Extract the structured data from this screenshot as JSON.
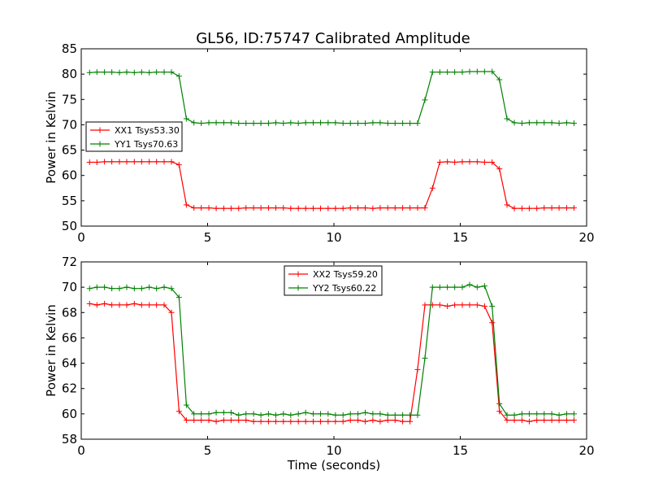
{
  "figure": {
    "title": "GL56, ID:75747 Calibrated Amplitude"
  },
  "colors": {
    "xx": "#ff0000",
    "yy": "#008000"
  },
  "chart_data": [
    {
      "type": "line",
      "title": "GL56, ID:75747 Calibrated Amplitude",
      "xlabel": "",
      "ylabel": "Power in Kelvin",
      "xlim": [
        0,
        20
      ],
      "ylim": [
        50,
        85
      ],
      "xticks": [
        0,
        5,
        10,
        15,
        20
      ],
      "yticks": [
        50,
        55,
        60,
        65,
        70,
        75,
        80,
        85
      ],
      "legend_position": "center-left",
      "x": [
        0.33,
        0.62,
        0.92,
        1.21,
        1.51,
        1.8,
        2.1,
        2.39,
        2.69,
        2.98,
        3.28,
        3.57,
        3.87,
        4.16,
        4.46,
        4.75,
        5.05,
        5.34,
        5.64,
        5.93,
        6.23,
        6.52,
        6.82,
        7.11,
        7.41,
        7.7,
        8.0,
        8.29,
        8.59,
        8.88,
        9.18,
        9.47,
        9.77,
        10.06,
        10.36,
        10.65,
        10.95,
        11.24,
        11.54,
        11.83,
        12.13,
        12.42,
        12.72,
        13.01,
        13.31,
        13.6,
        13.9,
        14.19,
        14.49,
        14.78,
        15.08,
        15.37,
        15.67,
        15.96,
        16.26,
        16.55,
        16.85,
        17.14,
        17.44,
        17.73,
        18.03,
        18.32,
        18.62,
        18.91,
        19.21,
        19.5
      ],
      "series": [
        {
          "name": "XX1 Tsys53.30",
          "color": "#ff0000",
          "values": [
            62.6,
            62.6,
            62.7,
            62.7,
            62.7,
            62.7,
            62.7,
            62.7,
            62.7,
            62.7,
            62.7,
            62.7,
            62.1,
            54.2,
            53.6,
            53.6,
            53.6,
            53.5,
            53.5,
            53.5,
            53.5,
            53.6,
            53.6,
            53.6,
            53.6,
            53.6,
            53.6,
            53.5,
            53.5,
            53.5,
            53.5,
            53.5,
            53.5,
            53.5,
            53.5,
            53.6,
            53.6,
            53.6,
            53.5,
            53.6,
            53.6,
            53.6,
            53.6,
            53.6,
            53.6,
            53.6,
            57.5,
            62.6,
            62.7,
            62.6,
            62.7,
            62.7,
            62.7,
            62.6,
            62.6,
            61.3,
            54.2,
            53.5,
            53.5,
            53.5,
            53.5,
            53.6,
            53.6,
            53.6,
            53.6,
            53.6
          ]
        },
        {
          "name": "YY1 Tsys70.63",
          "color": "#008000",
          "values": [
            80.3,
            80.4,
            80.4,
            80.4,
            80.3,
            80.4,
            80.3,
            80.4,
            80.3,
            80.4,
            80.4,
            80.4,
            79.6,
            71.2,
            70.4,
            70.3,
            70.4,
            70.4,
            70.4,
            70.4,
            70.3,
            70.3,
            70.3,
            70.3,
            70.3,
            70.4,
            70.3,
            70.4,
            70.3,
            70.4,
            70.4,
            70.4,
            70.4,
            70.4,
            70.3,
            70.3,
            70.3,
            70.3,
            70.4,
            70.4,
            70.3,
            70.3,
            70.3,
            70.3,
            70.3,
            74.9,
            80.4,
            80.4,
            80.4,
            80.4,
            80.4,
            80.5,
            80.5,
            80.5,
            80.5,
            78.9,
            71.2,
            70.4,
            70.3,
            70.4,
            70.4,
            70.4,
            70.4,
            70.3,
            70.4,
            70.3
          ]
        }
      ]
    },
    {
      "type": "line",
      "title": "",
      "xlabel": "Time (seconds)",
      "ylabel": "Power in Kelvin",
      "xlim": [
        0,
        20
      ],
      "ylim": [
        58,
        72
      ],
      "xticks": [
        0,
        5,
        10,
        15,
        20
      ],
      "yticks": [
        58,
        60,
        62,
        64,
        66,
        68,
        70,
        72
      ],
      "legend_position": "upper-center",
      "x": [
        0.33,
        0.62,
        0.92,
        1.21,
        1.51,
        1.8,
        2.1,
        2.39,
        2.69,
        2.98,
        3.28,
        3.57,
        3.87,
        4.16,
        4.46,
        4.75,
        5.05,
        5.34,
        5.64,
        5.93,
        6.23,
        6.52,
        6.82,
        7.11,
        7.41,
        7.7,
        8.0,
        8.29,
        8.59,
        8.88,
        9.18,
        9.47,
        9.77,
        10.06,
        10.36,
        10.65,
        10.95,
        11.24,
        11.54,
        11.83,
        12.13,
        12.42,
        12.72,
        13.01,
        13.31,
        13.6,
        13.9,
        14.19,
        14.49,
        14.78,
        15.08,
        15.37,
        15.67,
        15.96,
        16.26,
        16.55,
        16.85,
        17.14,
        17.44,
        17.73,
        18.03,
        18.32,
        18.62,
        18.91,
        19.21,
        19.5
      ],
      "series": [
        {
          "name": "XX2 Tsys59.20",
          "color": "#ff0000",
          "values": [
            68.7,
            68.6,
            68.7,
            68.6,
            68.6,
            68.6,
            68.7,
            68.6,
            68.6,
            68.6,
            68.6,
            68.0,
            60.2,
            59.5,
            59.5,
            59.5,
            59.5,
            59.4,
            59.5,
            59.5,
            59.5,
            59.5,
            59.4,
            59.4,
            59.4,
            59.4,
            59.4,
            59.4,
            59.4,
            59.4,
            59.4,
            59.4,
            59.4,
            59.4,
            59.4,
            59.5,
            59.5,
            59.4,
            59.5,
            59.4,
            59.5,
            59.5,
            59.4,
            59.4,
            63.5,
            68.6,
            68.6,
            68.6,
            68.5,
            68.6,
            68.6,
            68.6,
            68.6,
            68.5,
            67.2,
            60.2,
            59.5,
            59.5,
            59.5,
            59.4,
            59.5,
            59.5,
            59.5,
            59.5,
            59.5,
            59.5
          ]
        },
        {
          "name": "YY2 Tsys60.22",
          "color": "#008000",
          "values": [
            69.9,
            70.0,
            70.0,
            69.9,
            69.9,
            70.0,
            69.9,
            69.9,
            70.0,
            69.9,
            70.0,
            69.9,
            69.2,
            60.7,
            60.0,
            60.0,
            60.0,
            60.1,
            60.1,
            60.1,
            59.9,
            60.0,
            60.0,
            59.9,
            60.0,
            59.9,
            60.0,
            59.9,
            60.0,
            60.1,
            60.0,
            60.0,
            60.0,
            59.9,
            59.9,
            60.0,
            60.0,
            60.1,
            60.0,
            60.0,
            59.9,
            59.9,
            59.9,
            59.9,
            59.9,
            64.4,
            70.0,
            70.0,
            70.0,
            70.0,
            70.0,
            70.2,
            70.0,
            70.1,
            68.5,
            60.8,
            59.9,
            59.9,
            60.0,
            60.0,
            60.0,
            60.0,
            60.0,
            59.9,
            60.0,
            60.0
          ]
        }
      ]
    }
  ]
}
